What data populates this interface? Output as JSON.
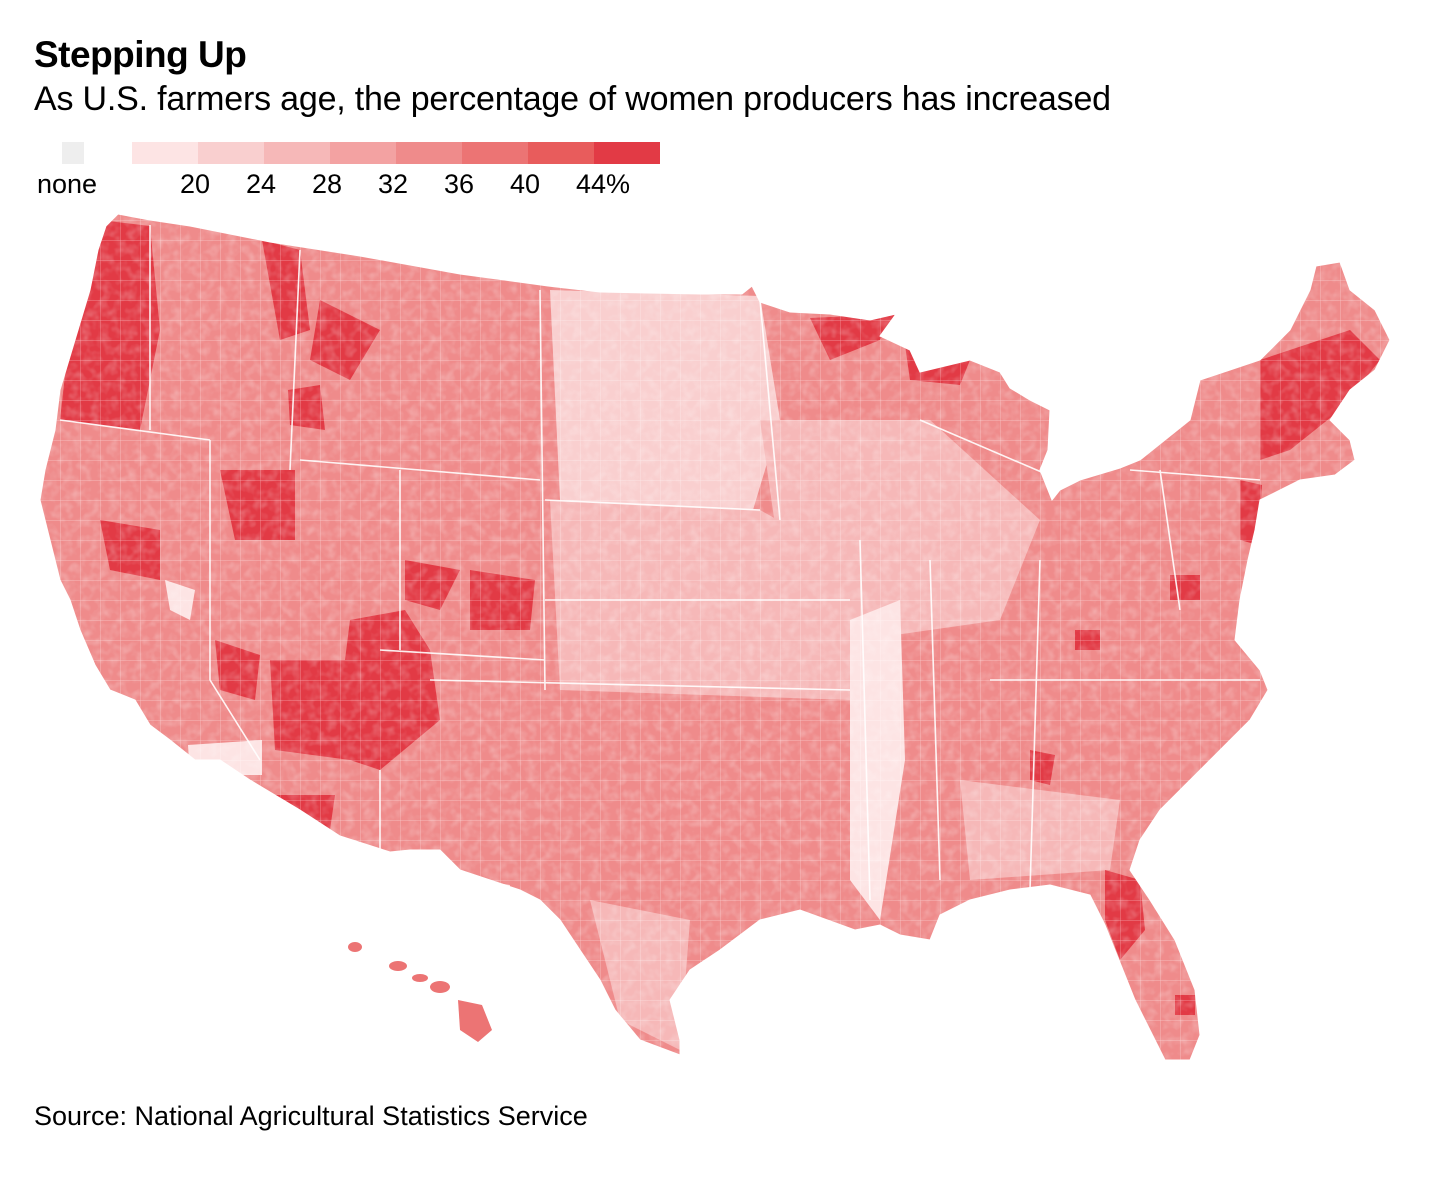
{
  "header": {
    "title": "Stepping Up",
    "subtitle": "As U.S. farmers age, the percentage of women producers has increased"
  },
  "legend": {
    "none_label": "none",
    "none_color": "#eeeeee",
    "bins": [
      {
        "color": "#fde4e4"
      },
      {
        "color": "#f9cfcf"
      },
      {
        "color": "#f6b8b8"
      },
      {
        "color": "#f3a2a2"
      },
      {
        "color": "#ef8b8b"
      },
      {
        "color": "#ec7474"
      },
      {
        "color": "#e85c5c"
      },
      {
        "color": "#e23a45"
      }
    ],
    "tick_labels": [
      "20",
      "24",
      "28",
      "32",
      "36",
      "40",
      "44%"
    ]
  },
  "map": {
    "type": "choropleth",
    "measure": "percentage of women producers by county",
    "regions": [
      {
        "name": "Contiguous U.S.",
        "fill_bin": 4
      },
      {
        "name": "Hawaii",
        "fill_bin": 5
      }
    ],
    "highlights": [
      {
        "area": "western Washington & Oregon",
        "fill_bin": 7
      },
      {
        "area": "northern Idaho",
        "fill_bin": 7
      },
      {
        "area": "southern Utah & northern Arizona",
        "fill_bin": 7
      },
      {
        "area": "Colorado Front Range",
        "fill_bin": 7
      },
      {
        "area": "northern Minnesota & Upper Michigan",
        "fill_bin": 7
      },
      {
        "area": "New England",
        "fill_bin": 7
      },
      {
        "area": "Florida",
        "fill_bin": 6
      },
      {
        "area": "Northern Plains",
        "fill_bin": 1
      },
      {
        "area": "Central Plains",
        "fill_bin": 2
      },
      {
        "area": "Mississippi Delta",
        "fill_bin": 0
      },
      {
        "area": "Southwest Nevada desert",
        "fill_bin": 0
      }
    ]
  },
  "footer": {
    "source": "Source: National Agricultural Statistics Service"
  }
}
